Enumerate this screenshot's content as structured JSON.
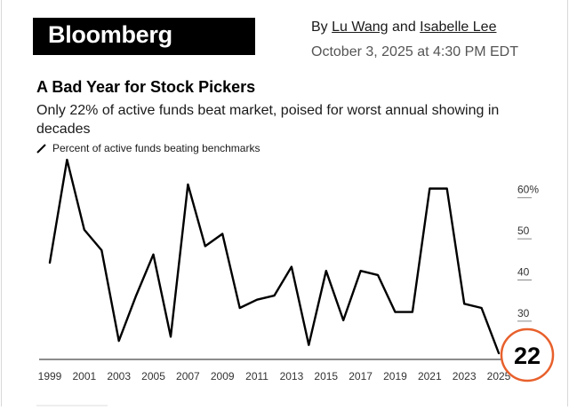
{
  "header": {
    "logo_text": "Bloomberg",
    "byline_prefix": "By ",
    "author1": "Lu Wang",
    "byline_conj": " and ",
    "author2": "Isabelle Lee",
    "date": "October 3, 2025 at 4:30 PM EDT"
  },
  "article": {
    "title": "A Bad Year for Stock Pickers",
    "subtitle": "Only 22% of active funds beat market, poised for worst annual showing in decades"
  },
  "colors": {
    "line": "#000000",
    "highlight": "#e8602c",
    "tick": "#333333"
  },
  "chart_data": {
    "type": "line",
    "title": "A Bad Year for Stock Pickers",
    "series": [
      {
        "name": "Percent of active funds beating benchmarks",
        "x": [
          1999,
          2000,
          2001,
          2002,
          2003,
          2004,
          2005,
          2006,
          2007,
          2008,
          2009,
          2010,
          2011,
          2012,
          2013,
          2014,
          2015,
          2016,
          2017,
          2018,
          2019,
          2020,
          2021,
          2022,
          2023,
          2024,
          2025
        ],
        "y": [
          44,
          69,
          52,
          47,
          25,
          36,
          46,
          26,
          63,
          48,
          51,
          33,
          35,
          36,
          43,
          24,
          42,
          30,
          42,
          41,
          32,
          32,
          62,
          62,
          34,
          33,
          22
        ]
      }
    ],
    "xlim": [
      1999,
      2025
    ],
    "ylim": [
      22,
      69
    ],
    "x_ticks": [
      "1999",
      "2001",
      "2003",
      "2005",
      "2007",
      "2009",
      "2011",
      "2013",
      "2015",
      "2017",
      "2019",
      "2021",
      "2023",
      "2025"
    ],
    "y_ticks": [
      {
        "value": 30,
        "label": "30"
      },
      {
        "value": 40,
        "label": "40"
      },
      {
        "value": 50,
        "label": "50"
      },
      {
        "value": 60,
        "label": "60%"
      }
    ],
    "highlight_label": "22",
    "legend": "Percent of active funds beating benchmarks",
    "grid": false
  }
}
